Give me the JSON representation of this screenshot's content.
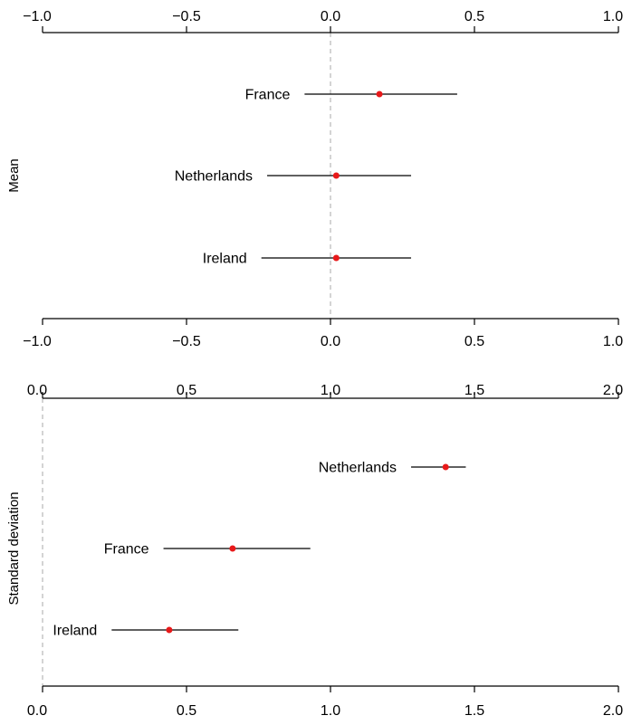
{
  "chart_data": [
    {
      "type": "forest",
      "ylabel": "Mean",
      "xlim": [
        -1.0,
        1.0
      ],
      "ticks": [
        -1.0,
        -0.5,
        0.0,
        0.5,
        1.0
      ],
      "tick_labels": [
        "−1.0",
        "−0.5",
        "0.0",
        "0.5",
        "1.0"
      ],
      "reference_line": 0.0,
      "axes": [
        "top",
        "bottom"
      ],
      "point_color": "#e8191a",
      "rows": [
        {
          "label": "France",
          "estimate": 0.17,
          "lower": -0.09,
          "upper": 0.44
        },
        {
          "label": "Netherlands",
          "estimate": 0.02,
          "lower": -0.22,
          "upper": 0.28
        },
        {
          "label": "Ireland",
          "estimate": 0.02,
          "lower": -0.24,
          "upper": 0.28
        }
      ]
    },
    {
      "type": "forest",
      "ylabel": "Standard deviation",
      "xlim": [
        0.0,
        2.0
      ],
      "ticks": [
        0.0,
        0.5,
        1.0,
        1.5,
        2.0
      ],
      "tick_labels": [
        "0.0",
        "0.5",
        "1.0",
        "1.5",
        "2.0"
      ],
      "reference_line": 0.0,
      "axes": [
        "top",
        "bottom"
      ],
      "point_color": "#e8191a",
      "rows": [
        {
          "label": "Netherlands",
          "estimate": 1.4,
          "lower": 1.28,
          "upper": 1.47
        },
        {
          "label": "France",
          "estimate": 0.66,
          "lower": 0.42,
          "upper": 0.93
        },
        {
          "label": "Ireland",
          "estimate": 0.44,
          "lower": 0.24,
          "upper": 0.68
        }
      ]
    }
  ]
}
